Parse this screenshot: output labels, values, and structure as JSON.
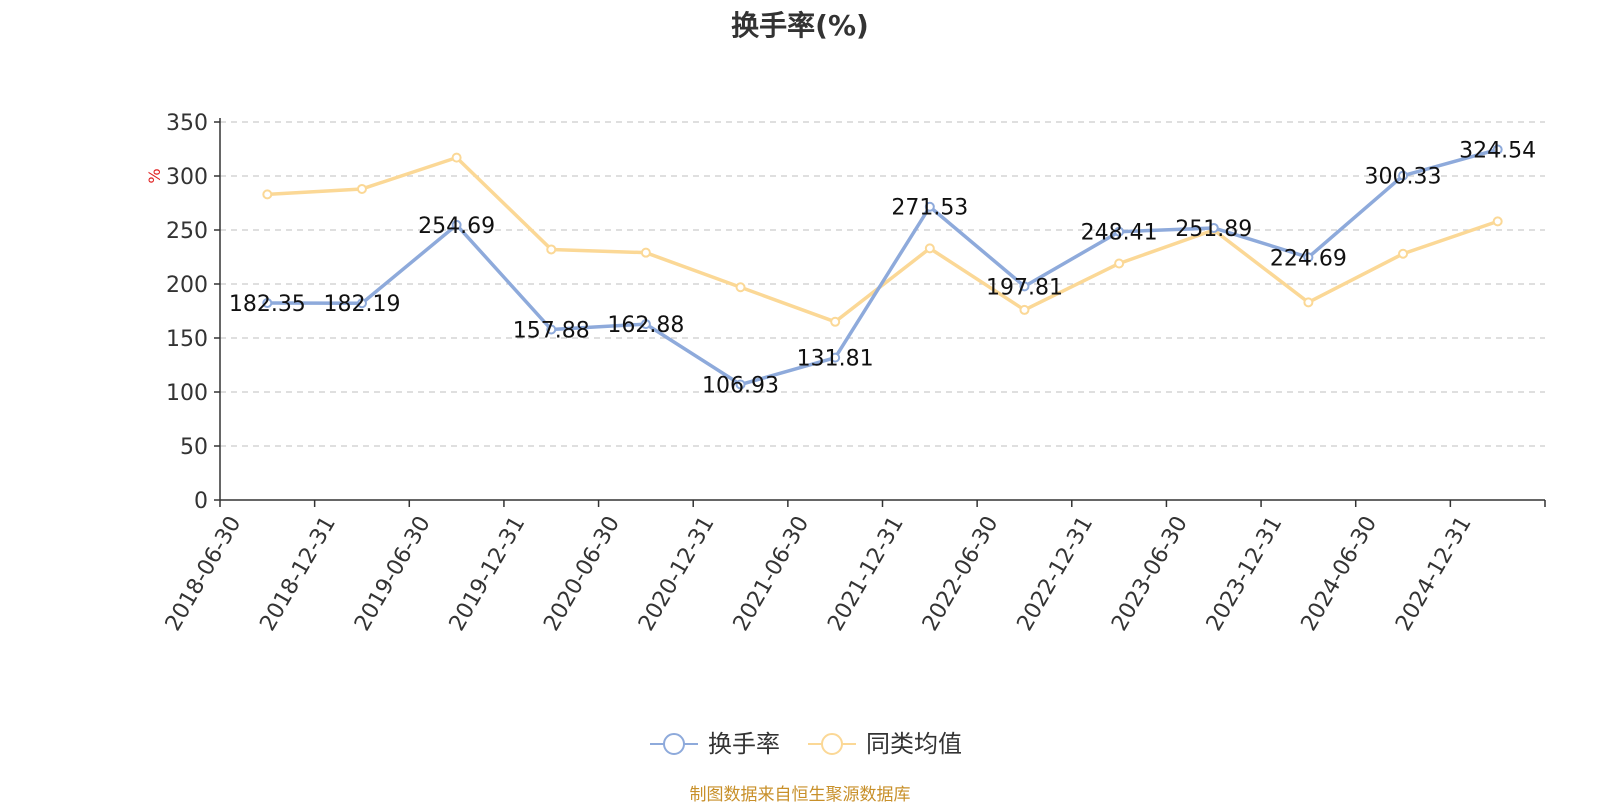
{
  "chart_data": {
    "type": "line",
    "title": "换手率(%)",
    "unit_label": "%",
    "categories": [
      "2018-06-30",
      "2018-12-31",
      "2019-06-30",
      "2019-12-31",
      "2020-06-30",
      "2020-12-31",
      "2021-06-30",
      "2021-12-31",
      "2022-06-30",
      "2022-12-31",
      "2023-06-30",
      "2023-12-31",
      "2024-06-30",
      "2024-12-31"
    ],
    "ylim": [
      0,
      350
    ],
    "yticks": [
      0,
      50,
      100,
      150,
      200,
      250,
      300,
      350
    ],
    "grid": true,
    "legend_position": "bottom-center",
    "series": [
      {
        "name": "换手率",
        "color": "#8eaadb",
        "values": [
          182.35,
          182.19,
          254.69,
          157.88,
          162.88,
          106.93,
          131.81,
          271.53,
          197.81,
          248.41,
          251.89,
          224.69,
          300.33,
          324.54
        ],
        "labels": [
          "182.35",
          "182.19",
          "254.69",
          "157.88",
          "162.88",
          "106.93",
          "131.81",
          "271.53",
          "197.81",
          "248.41",
          "251.89",
          "224.69",
          "300.33",
          "324.54"
        ]
      },
      {
        "name": "同类均值",
        "color": "#fbd896",
        "values": [
          283,
          288,
          317,
          232,
          229,
          197,
          165,
          233,
          176,
          219,
          250,
          183,
          228,
          258
        ]
      }
    ]
  },
  "source_text": "制图数据来自恒生聚源数据库"
}
